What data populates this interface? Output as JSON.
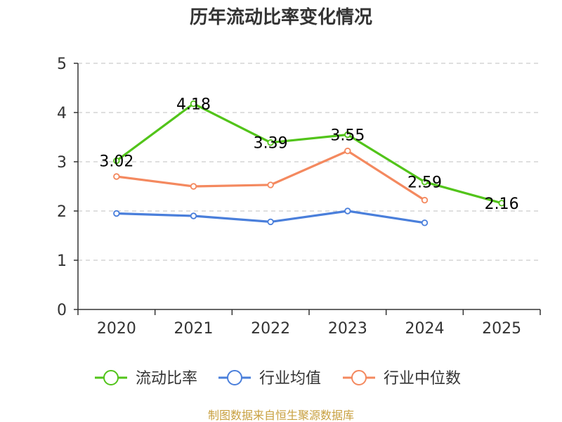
{
  "chart_data": {
    "type": "line",
    "title": "历年流动比率变化情况",
    "categories": [
      "2020",
      "2021",
      "2022",
      "2023",
      "2024",
      "2025"
    ],
    "ylim": [
      0,
      5
    ],
    "yticks": [
      0,
      1,
      2,
      3,
      4,
      5
    ],
    "xlabel": "",
    "ylabel": "",
    "grid": "horizontal dashed",
    "legend_position": "bottom",
    "series": [
      {
        "name": "流动比率",
        "color": "#52c41a",
        "values": [
          3.02,
          4.18,
          3.39,
          3.55,
          2.59,
          2.16
        ],
        "labels": [
          "3.02",
          "4.18",
          "3.39",
          "3.55",
          "2.59",
          "2.16"
        ]
      },
      {
        "name": "行业均值",
        "color": "#4a7fdb",
        "values": [
          1.95,
          1.9,
          1.78,
          2.0,
          1.76,
          null
        ]
      },
      {
        "name": "行业中位数",
        "color": "#f4895f",
        "values": [
          2.7,
          2.5,
          2.53,
          3.22,
          2.22,
          null
        ]
      }
    ]
  },
  "source": "制图数据来自恒生聚源数据库"
}
